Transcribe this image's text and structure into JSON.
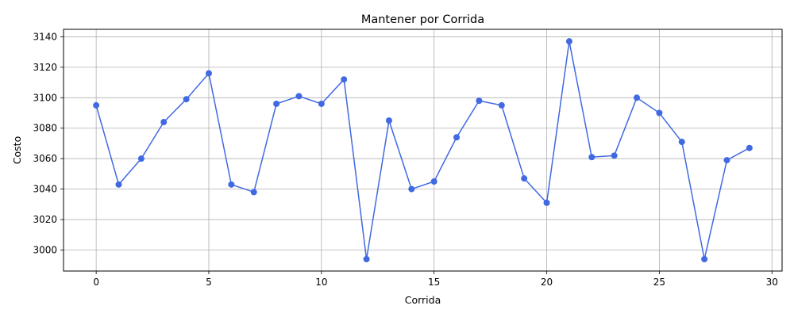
{
  "chart_data": {
    "type": "line",
    "title": "Mantener por Corrida",
    "xlabel": "Corrida",
    "ylabel": "Costo",
    "xlim": [
      -1.45,
      30.45
    ],
    "ylim": [
      2986.2,
      3144.9
    ],
    "xticks": [
      0,
      5,
      10,
      15,
      20,
      25,
      30
    ],
    "yticks": [
      3000,
      3020,
      3040,
      3060,
      3080,
      3100,
      3120,
      3140
    ],
    "grid": true,
    "series": [
      {
        "color": "#4169e1",
        "marker": "circle",
        "x": [
          0,
          1,
          2,
          3,
          4,
          5,
          6,
          7,
          8,
          9,
          10,
          11,
          12,
          13,
          14,
          15,
          16,
          17,
          18,
          19,
          20,
          21,
          22,
          23,
          24,
          25,
          26,
          27,
          28,
          29
        ],
        "y": [
          3095,
          3043,
          3060,
          3084,
          3099,
          3116,
          3043,
          3038,
          3096,
          3101,
          3096,
          3112,
          2994,
          3085,
          3040,
          3045,
          3074,
          3098,
          3095,
          3047,
          3031,
          3137,
          3061,
          3062,
          3100,
          3090,
          3071,
          2994,
          3059,
          3067
        ]
      }
    ]
  }
}
